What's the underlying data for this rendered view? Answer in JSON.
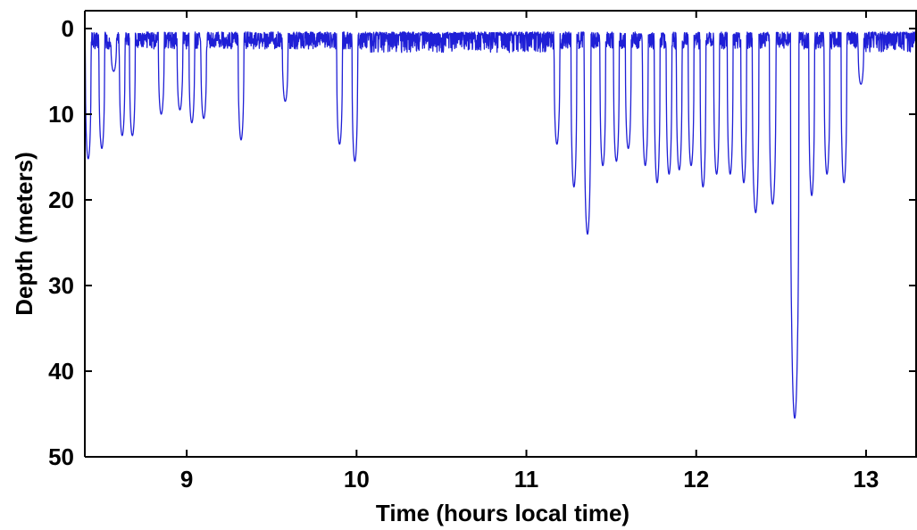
{
  "chart_data": {
    "type": "line",
    "title": "",
    "xlabel": "Time (hours local time)",
    "ylabel": "Depth (meters)",
    "xlim": [
      8.4,
      13.3
    ],
    "ylim": [
      0,
      50
    ],
    "y_inverted": true,
    "x_ticks": [
      9,
      10,
      11,
      12,
      13
    ],
    "x_tick_labels": [
      "9",
      "10",
      "11",
      "12",
      "13"
    ],
    "y_ticks": [
      0,
      10,
      20,
      30,
      40,
      50
    ],
    "y_tick_labels": [
      "0",
      "10",
      "20",
      "30",
      "40",
      "50"
    ],
    "grid": false,
    "legend": "none",
    "series_color": "#1f1fd6",
    "surface_band_depth": [
      1,
      3
    ],
    "dives": [
      {
        "t": 8.42,
        "depth": 15.2
      },
      {
        "t": 8.5,
        "depth": 14.0
      },
      {
        "t": 8.57,
        "depth": 5.0
      },
      {
        "t": 8.62,
        "depth": 12.5
      },
      {
        "t": 8.68,
        "depth": 12.5
      },
      {
        "t": 8.85,
        "depth": 10.0
      },
      {
        "t": 8.96,
        "depth": 9.5
      },
      {
        "t": 9.03,
        "depth": 11.0
      },
      {
        "t": 9.1,
        "depth": 10.5
      },
      {
        "t": 9.32,
        "depth": 13.0
      },
      {
        "t": 9.58,
        "depth": 8.5
      },
      {
        "t": 9.9,
        "depth": 13.5
      },
      {
        "t": 9.99,
        "depth": 15.5
      },
      {
        "t": 11.18,
        "depth": 13.5
      },
      {
        "t": 11.28,
        "depth": 18.5
      },
      {
        "t": 11.36,
        "depth": 24.0
      },
      {
        "t": 11.45,
        "depth": 16.0
      },
      {
        "t": 11.53,
        "depth": 15.5
      },
      {
        "t": 11.6,
        "depth": 14.0
      },
      {
        "t": 11.7,
        "depth": 16.0
      },
      {
        "t": 11.77,
        "depth": 18.0
      },
      {
        "t": 11.84,
        "depth": 17.0
      },
      {
        "t": 11.9,
        "depth": 16.5
      },
      {
        "t": 11.97,
        "depth": 16.0
      },
      {
        "t": 12.04,
        "depth": 18.5
      },
      {
        "t": 12.12,
        "depth": 17.0
      },
      {
        "t": 12.2,
        "depth": 17.0
      },
      {
        "t": 12.28,
        "depth": 18.0
      },
      {
        "t": 12.35,
        "depth": 21.5
      },
      {
        "t": 12.45,
        "depth": 20.5
      },
      {
        "t": 12.58,
        "depth": 45.5
      },
      {
        "t": 12.68,
        "depth": 19.5
      },
      {
        "t": 12.77,
        "depth": 17.0
      },
      {
        "t": 12.87,
        "depth": 18.0
      },
      {
        "t": 12.97,
        "depth": 6.5
      }
    ]
  }
}
